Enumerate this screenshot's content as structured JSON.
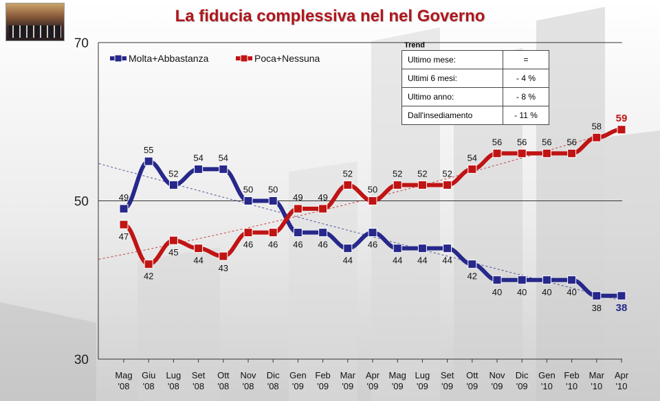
{
  "title": "La fiducia complessiva nel nel Governo",
  "trend": {
    "label": "Trend",
    "rows": [
      {
        "label": "Ultimo mese:",
        "value": "="
      },
      {
        "label": "Ultimi 6 mesi:",
        "value": "- 4 %"
      },
      {
        "label": "Ultimo anno:",
        "value": "- 8 %"
      },
      {
        "label": "Dall'insediamento",
        "value": "- 11 %"
      }
    ]
  },
  "colors": {
    "title": "#b0161c",
    "molta": "#27288a",
    "poca": "#c01414"
  },
  "chart_data": {
    "type": "line",
    "categories": [
      [
        "Mag",
        "'08"
      ],
      [
        "Giu",
        "'08"
      ],
      [
        "Lug",
        "'08"
      ],
      [
        "Set",
        "'08"
      ],
      [
        "Ott",
        "'08"
      ],
      [
        "Nov",
        "'08"
      ],
      [
        "Dic",
        "'08"
      ],
      [
        "Gen",
        "'09"
      ],
      [
        "Feb",
        "'09"
      ],
      [
        "Mar",
        "'09"
      ],
      [
        "Apr",
        "'09"
      ],
      [
        "Mag",
        "'09"
      ],
      [
        "Lug",
        "'09"
      ],
      [
        "Set",
        "'09"
      ],
      [
        "Ott",
        "'09"
      ],
      [
        "Nov",
        "'09"
      ],
      [
        "Dic",
        "'09"
      ],
      [
        "Gen",
        "'10"
      ],
      [
        "Feb",
        "'10"
      ],
      [
        "Mar",
        "'10"
      ],
      [
        "Apr",
        "'10"
      ]
    ],
    "series": [
      {
        "name": "Molta+Abbastanza",
        "values": [
          49,
          55,
          52,
          54,
          54,
          50,
          50,
          46,
          46,
          44,
          46,
          44,
          44,
          44,
          42,
          40,
          40,
          40,
          40,
          38,
          38
        ]
      },
      {
        "name": "Poca+Nessuna",
        "values": [
          47,
          42,
          45,
          44,
          43,
          46,
          46,
          49,
          49,
          52,
          50,
          52,
          52,
          52,
          54,
          56,
          56,
          56,
          56,
          58,
          59
        ]
      }
    ],
    "ylim": [
      30,
      70
    ],
    "yticks": [
      30,
      50,
      70
    ],
    "gridlines": [
      50,
      70
    ],
    "trendlines": true,
    "legend": "top-left",
    "highlight_last": true
  }
}
